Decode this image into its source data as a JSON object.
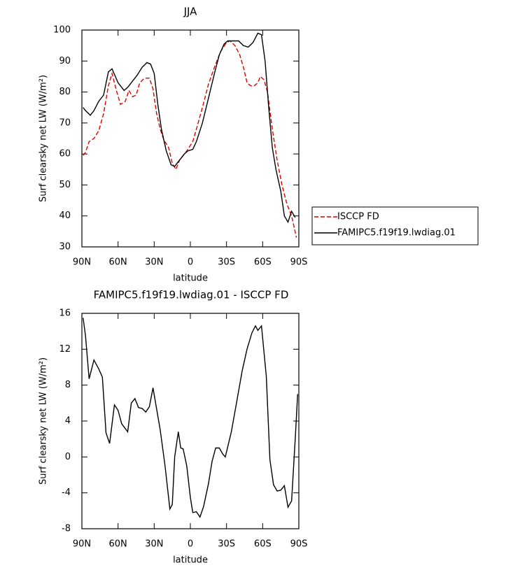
{
  "chart_data": [
    {
      "type": "line",
      "title": "JJA",
      "xlabel": "latitude",
      "ylabel": "Surf clearsky net LW (W/m²)",
      "xlim": [
        90,
        -90
      ],
      "xticks": [
        {
          "value": 90,
          "label": "90N"
        },
        {
          "value": 60,
          "label": "60N"
        },
        {
          "value": 30,
          "label": "30N"
        },
        0,
        {
          "value": -30,
          "label": "30S"
        },
        {
          "value": -60,
          "label": "60S"
        },
        {
          "value": -90,
          "label": "90S"
        }
      ],
      "ylim": [
        30,
        100
      ],
      "yticks": [
        30,
        40,
        50,
        60,
        70,
        80,
        90,
        100
      ],
      "legend": "right",
      "series": [
        {
          "name": "ISCCP FD",
          "color": "#e00000",
          "dash": true,
          "x": [
            89,
            87,
            84,
            80,
            76,
            72,
            68,
            65,
            61,
            58,
            54,
            51,
            48,
            45,
            42,
            38,
            34,
            31,
            28,
            25,
            22,
            18,
            15,
            12,
            9,
            5,
            2,
            -2,
            -5,
            -10,
            -15,
            -20,
            -25,
            -30,
            -33,
            -37,
            -41,
            -44,
            -47,
            -50,
            -53,
            -56,
            -58,
            -61,
            -64,
            -68,
            -72,
            -76,
            -80,
            -84,
            -88
          ],
          "values": [
            59.5,
            60.5,
            64,
            65,
            67.5,
            73,
            82,
            86,
            80,
            76,
            77,
            80.5,
            78.5,
            79,
            83,
            84.5,
            84.5,
            81,
            73,
            68,
            64.5,
            62,
            57,
            55,
            58,
            60,
            61.5,
            64,
            68,
            75,
            82.5,
            88,
            93,
            96,
            96.5,
            95,
            92,
            88,
            83,
            82,
            82,
            83,
            85,
            84,
            80,
            68,
            58,
            50,
            44,
            40,
            33
          ]
        },
        {
          "name": "FAMIPC5.f19f19.lwdiag.01",
          "color": "#000000",
          "dash": false,
          "x": [
            89,
            87,
            83,
            80,
            76,
            72,
            68,
            65,
            60,
            55,
            52,
            48,
            44,
            40,
            36,
            33,
            30,
            27,
            24,
            20,
            16,
            13,
            10,
            5,
            2,
            -2,
            -5,
            -10,
            -15,
            -20,
            -24,
            -28,
            -31,
            -35,
            -40,
            -44,
            -48,
            -52,
            -56,
            -59,
            -62,
            -65,
            -68,
            -71,
            -75,
            -78,
            -81,
            -84,
            -87
          ],
          "values": [
            75,
            74,
            72.5,
            74,
            77,
            79,
            86.5,
            87.5,
            83,
            80.5,
            81.5,
            83.5,
            85.5,
            88,
            89.5,
            89,
            86,
            76,
            68,
            61,
            56.5,
            56,
            57.5,
            60,
            61,
            61.5,
            64,
            70,
            78,
            86,
            92,
            95.5,
            96.5,
            96.5,
            96.5,
            95,
            94.5,
            96,
            99,
            98.5,
            90,
            75,
            62,
            55,
            48,
            40,
            38,
            41.5,
            39.5
          ]
        }
      ]
    },
    {
      "type": "line",
      "title": "FAMIPC5.f19f19.lwdiag.01 - ISCCP FD",
      "xlabel": "latitude",
      "ylabel": "Surf clearsky net LW (W/m²)",
      "xlim": [
        90,
        -90
      ],
      "xticks": [
        {
          "value": 90,
          "label": "90N"
        },
        {
          "value": 60,
          "label": "60N"
        },
        {
          "value": 30,
          "label": "30N"
        },
        0,
        {
          "value": -30,
          "label": "30S"
        },
        {
          "value": -60,
          "label": "60S"
        },
        {
          "value": -90,
          "label": "90S"
        }
      ],
      "ylim": [
        -8,
        16
      ],
      "yticks": [
        -8,
        -4,
        0,
        4,
        8,
        12,
        16
      ],
      "series": [
        {
          "color": "#000000",
          "dash": false,
          "x": [
            89,
            87,
            84,
            80,
            76,
            73,
            70,
            67,
            63,
            60,
            57,
            52,
            49,
            46,
            43,
            40,
            37,
            34,
            31,
            25,
            21,
            17,
            15,
            13,
            10,
            8,
            6,
            3,
            0,
            -2,
            -5,
            -8,
            -11,
            -15,
            -18,
            -21,
            -24,
            -27,
            -29,
            -34,
            -38,
            -43,
            -47,
            -51,
            -54,
            -56,
            -59,
            -63,
            -66,
            -69,
            -72,
            -75,
            -78,
            -81,
            -84,
            -87,
            -89
          ],
          "values": [
            15.5,
            13.5,
            8.7,
            10.8,
            9.8,
            8.9,
            2.7,
            1.5,
            5.8,
            5.2,
            3.7,
            2.8,
            6,
            6.5,
            5.5,
            5.4,
            5,
            5.6,
            7.7,
            3,
            -1,
            -5.8,
            -5.3,
            0,
            2.8,
            1,
            0.9,
            -1,
            -4.5,
            -6.2,
            -6.1,
            -6.7,
            -5.5,
            -3,
            -0.5,
            1,
            1,
            0.3,
            0,
            2.8,
            5.8,
            9.6,
            12,
            13.8,
            14.6,
            14.1,
            14.6,
            9,
            -0.3,
            -3.1,
            -3.8,
            -3.7,
            -3.2,
            -5.6,
            -4.9,
            2,
            7
          ]
        }
      ]
    }
  ]
}
